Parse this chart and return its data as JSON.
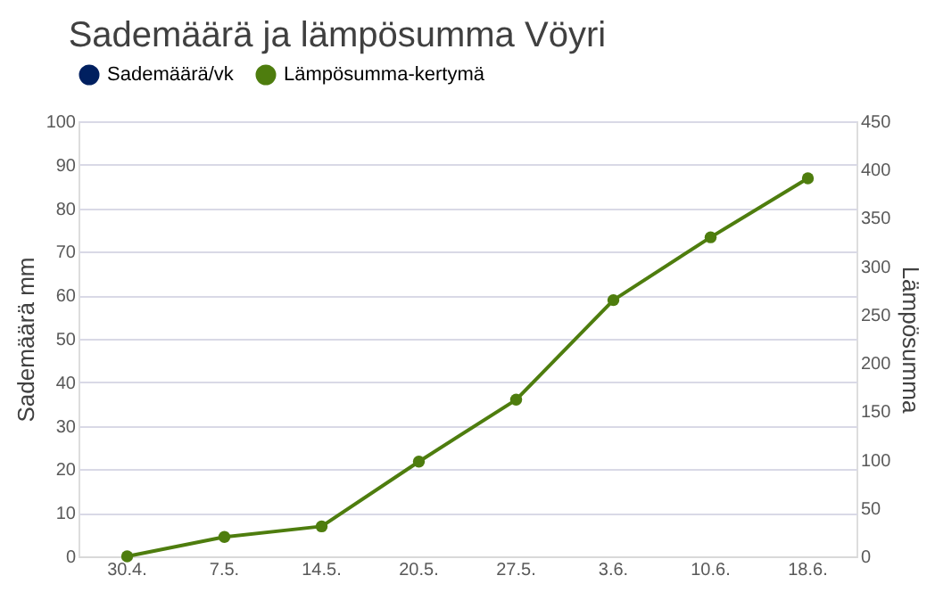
{
  "chart_data": {
    "type": "bar",
    "title": "Sademäärä ja lämpösumma Vöyri",
    "ylabel": "Sademäärä mm",
    "y2label": "Lämpösumma",
    "categories": [
      "30.4.",
      "7.5.",
      "14.5.",
      "20.5.",
      "27.5.",
      "3.6.",
      "10.6.",
      "18.6."
    ],
    "series": [
      {
        "name": "Sademäärä/vk",
        "color": "#002060",
        "values": [
          null,
          null,
          null,
          null,
          null,
          null,
          null,
          null
        ]
      },
      {
        "name": "Lämpösumma-kertymä",
        "type": "line",
        "axis": "y2",
        "color": "#4e7d0e",
        "marker": "circle",
        "values": [
          0,
          20,
          31,
          98,
          162,
          265,
          330,
          391
        ]
      }
    ],
    "ylim": [
      0,
      100
    ],
    "yticks": [
      0,
      10,
      20,
      30,
      40,
      50,
      60,
      70,
      80,
      90,
      100
    ],
    "y2lim": [
      0,
      450
    ],
    "y2ticks": [
      0,
      50,
      100,
      150,
      200,
      250,
      300,
      350,
      400,
      450
    ],
    "grid": "y",
    "legend": "top"
  }
}
